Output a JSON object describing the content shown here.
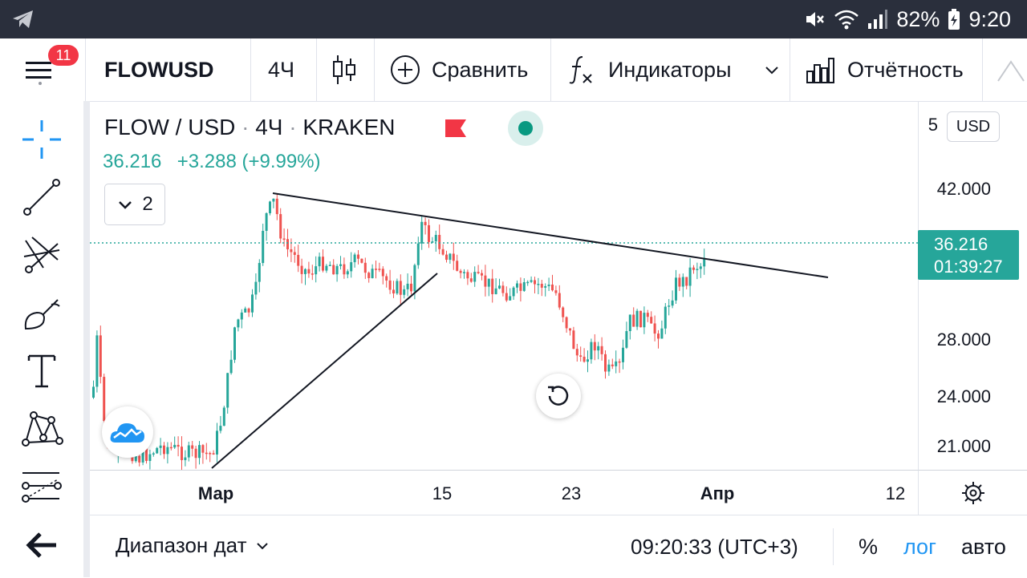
{
  "status_bar": {
    "battery": "82%",
    "time": "9:20"
  },
  "menu": {
    "badge": "11"
  },
  "toolbar": {
    "symbol": "FLOWUSD",
    "interval": "4Ч",
    "compare_label": "Сравнить",
    "indicators_label": "Индикаторы",
    "financials_label": "Отчётность"
  },
  "legend": {
    "symbol": "FLOW / USD",
    "interval": "4Ч",
    "exchange": "KRAKEN",
    "price": "36.216",
    "change": "+3.288 (+9.99%)",
    "collapsed_count": "2"
  },
  "price_axis": {
    "currency": "USD",
    "top_partial_label": "5",
    "labels": [
      "42.000",
      "28.000",
      "24.000",
      "21.000"
    ],
    "current_price": "36.216",
    "countdown": "01:39:27"
  },
  "time_axis": {
    "labels": [
      "Мар",
      "15",
      "23",
      "Апр",
      "12"
    ]
  },
  "bottom_bar": {
    "date_range_label": "Диапазон дат",
    "clock": "09:20:33 (UTC+3)",
    "percent_label": "%",
    "log_label": "лог",
    "auto_label": "авто"
  },
  "colors": {
    "up": "#26a69a",
    "down": "#ef5350",
    "accent": "#2196f3"
  },
  "icons": [
    "crosshair-icon",
    "trend-line-icon",
    "pitchfork-icon",
    "brush-icon",
    "text-icon",
    "pattern-icon",
    "fib-icon",
    "back-arrow-icon"
  ]
}
